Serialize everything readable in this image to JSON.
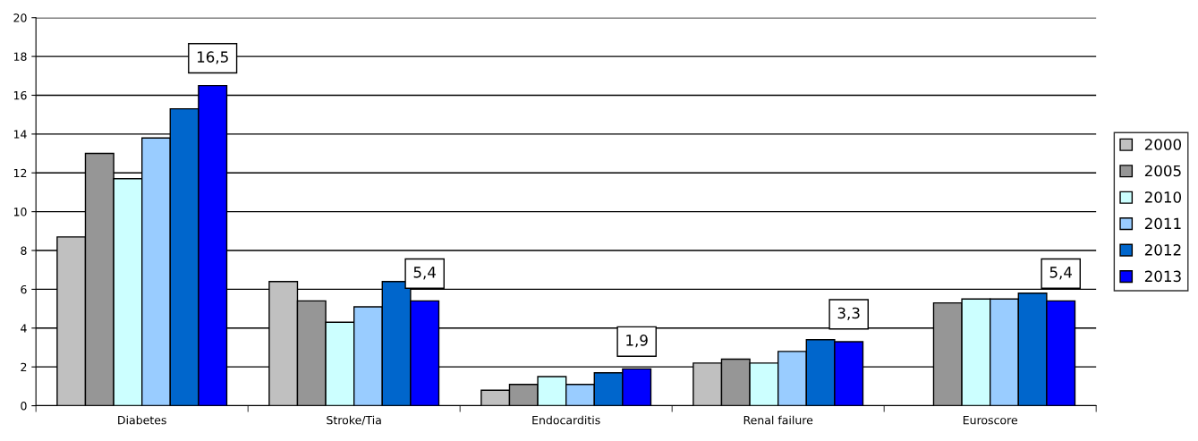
{
  "chart_data": {
    "type": "bar",
    "categories": [
      "Diabetes",
      "Stroke/Tia",
      "Endocarditis",
      "Renal failure",
      "Euroscore"
    ],
    "series": [
      {
        "name": "2000",
        "color": "#c0c0c0",
        "values": [
          8.7,
          6.4,
          0.8,
          2.2,
          null
        ]
      },
      {
        "name": "2005",
        "color": "#969696",
        "values": [
          13.0,
          5.4,
          1.1,
          2.4,
          5.3
        ]
      },
      {
        "name": "2010",
        "color": "#ccffff",
        "values": [
          11.7,
          4.3,
          1.5,
          2.2,
          5.5
        ]
      },
      {
        "name": "2011",
        "color": "#99ccff",
        "values": [
          13.8,
          5.1,
          1.1,
          2.8,
          5.5
        ]
      },
      {
        "name": "2012",
        "color": "#0066cc",
        "values": [
          15.3,
          6.4,
          1.7,
          3.4,
          5.8
        ]
      },
      {
        "name": "2013",
        "color": "#0000ff",
        "values": [
          16.5,
          5.4,
          1.9,
          3.3,
          5.4
        ],
        "value_labels": [
          "16,5",
          "5,4",
          "1,9",
          "3,3",
          "5,4"
        ]
      }
    ],
    "ylim": [
      0,
      20
    ],
    "yticks": [
      0,
      2,
      4,
      6,
      8,
      10,
      12,
      14,
      16,
      18,
      20
    ],
    "grid": "y",
    "legend": "right"
  }
}
